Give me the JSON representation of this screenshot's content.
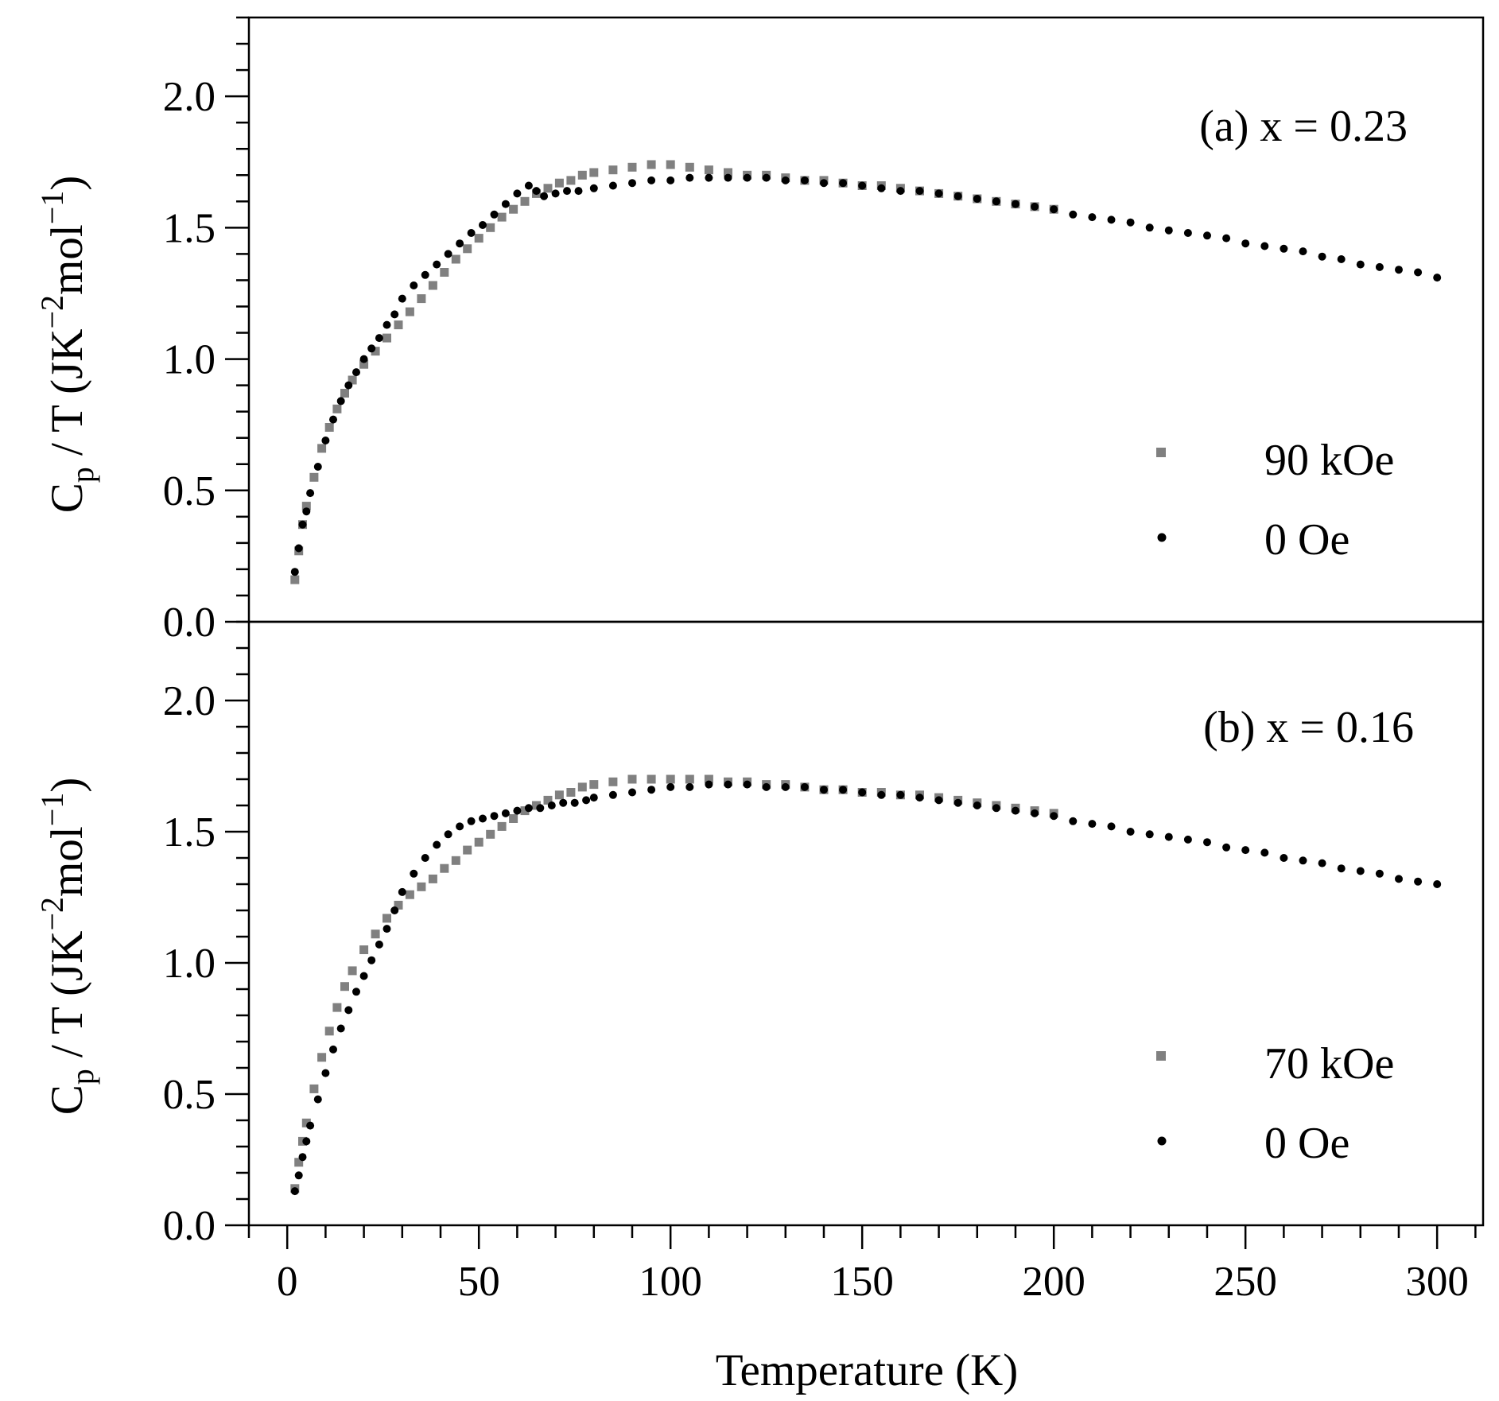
{
  "chart_data": [
    {
      "type": "scatter",
      "panel_label": "(a) x = 0.23",
      "xlabel": "Temperature (K)",
      "ylabel": {
        "main": "C",
        "sub": "p",
        "rest": " / T (JK",
        "sup1": "−2",
        "mid": "mol",
        "sup2": "−1",
        "end": ")"
      },
      "xlim": [
        -10,
        312
      ],
      "ylim": [
        0,
        2.3
      ],
      "yticks": [
        "0.0",
        "0.5",
        "1.0",
        "1.5",
        "2.0"
      ],
      "xticks": [
        "0",
        "50",
        "100",
        "150",
        "200",
        "250",
        "300"
      ],
      "legend_position": "lower-right",
      "series": [
        {
          "name": "90 kOe",
          "color": "#808080",
          "marker": "square",
          "points": [
            [
              2,
              0.16
            ],
            [
              3,
              0.27
            ],
            [
              4,
              0.37
            ],
            [
              5,
              0.44
            ],
            [
              7,
              0.55
            ],
            [
              9,
              0.66
            ],
            [
              11,
              0.74
            ],
            [
              13,
              0.81
            ],
            [
              15,
              0.87
            ],
            [
              17,
              0.92
            ],
            [
              20,
              0.98
            ],
            [
              23,
              1.03
            ],
            [
              26,
              1.08
            ],
            [
              29,
              1.13
            ],
            [
              32,
              1.18
            ],
            [
              35,
              1.23
            ],
            [
              38,
              1.28
            ],
            [
              41,
              1.33
            ],
            [
              44,
              1.38
            ],
            [
              47,
              1.42
            ],
            [
              50,
              1.46
            ],
            [
              53,
              1.5
            ],
            [
              56,
              1.54
            ],
            [
              59,
              1.57
            ],
            [
              62,
              1.6
            ],
            [
              65,
              1.63
            ],
            [
              68,
              1.65
            ],
            [
              71,
              1.67
            ],
            [
              74,
              1.68
            ],
            [
              77,
              1.7
            ],
            [
              80,
              1.71
            ],
            [
              85,
              1.72
            ],
            [
              90,
              1.73
            ],
            [
              95,
              1.74
            ],
            [
              100,
              1.74
            ],
            [
              105,
              1.73
            ],
            [
              110,
              1.72
            ],
            [
              115,
              1.71
            ],
            [
              120,
              1.7
            ],
            [
              125,
              1.7
            ],
            [
              130,
              1.69
            ],
            [
              135,
              1.68
            ],
            [
              140,
              1.68
            ],
            [
              145,
              1.67
            ],
            [
              150,
              1.66
            ],
            [
              155,
              1.66
            ],
            [
              160,
              1.65
            ],
            [
              165,
              1.64
            ],
            [
              170,
              1.63
            ],
            [
              175,
              1.62
            ],
            [
              180,
              1.61
            ],
            [
              185,
              1.6
            ],
            [
              190,
              1.59
            ],
            [
              195,
              1.58
            ],
            [
              200,
              1.57
            ]
          ]
        },
        {
          "name": "0 Oe",
          "color": "#000000",
          "marker": "circle",
          "points": [
            [
              2,
              0.19
            ],
            [
              3,
              0.28
            ],
            [
              4,
              0.37
            ],
            [
              5,
              0.42
            ],
            [
              6,
              0.49
            ],
            [
              8,
              0.59
            ],
            [
              10,
              0.69
            ],
            [
              12,
              0.77
            ],
            [
              14,
              0.84
            ],
            [
              16,
              0.9
            ],
            [
              18,
              0.95
            ],
            [
              20,
              1.0
            ],
            [
              22,
              1.04
            ],
            [
              24,
              1.08
            ],
            [
              26,
              1.13
            ],
            [
              28,
              1.17
            ],
            [
              30,
              1.23
            ],
            [
              33,
              1.28
            ],
            [
              36,
              1.32
            ],
            [
              39,
              1.36
            ],
            [
              42,
              1.4
            ],
            [
              45,
              1.44
            ],
            [
              48,
              1.48
            ],
            [
              51,
              1.51
            ],
            [
              54,
              1.55
            ],
            [
              57,
              1.59
            ],
            [
              60,
              1.63
            ],
            [
              63,
              1.66
            ],
            [
              65,
              1.64
            ],
            [
              67,
              1.62
            ],
            [
              70,
              1.63
            ],
            [
              73,
              1.64
            ],
            [
              76,
              1.64
            ],
            [
              80,
              1.65
            ],
            [
              85,
              1.66
            ],
            [
              90,
              1.67
            ],
            [
              95,
              1.68
            ],
            [
              100,
              1.68
            ],
            [
              105,
              1.69
            ],
            [
              110,
              1.69
            ],
            [
              115,
              1.69
            ],
            [
              120,
              1.69
            ],
            [
              125,
              1.69
            ],
            [
              130,
              1.68
            ],
            [
              135,
              1.68
            ],
            [
              140,
              1.67
            ],
            [
              145,
              1.67
            ],
            [
              150,
              1.66
            ],
            [
              155,
              1.65
            ],
            [
              160,
              1.64
            ],
            [
              165,
              1.64
            ],
            [
              170,
              1.63
            ],
            [
              175,
              1.62
            ],
            [
              180,
              1.61
            ],
            [
              185,
              1.6
            ],
            [
              190,
              1.59
            ],
            [
              195,
              1.58
            ],
            [
              200,
              1.57
            ],
            [
              205,
              1.55
            ],
            [
              210,
              1.54
            ],
            [
              215,
              1.53
            ],
            [
              220,
              1.52
            ],
            [
              225,
              1.5
            ],
            [
              230,
              1.49
            ],
            [
              235,
              1.48
            ],
            [
              240,
              1.47
            ],
            [
              245,
              1.46
            ],
            [
              250,
              1.44
            ],
            [
              255,
              1.43
            ],
            [
              260,
              1.42
            ],
            [
              265,
              1.41
            ],
            [
              270,
              1.39
            ],
            [
              275,
              1.38
            ],
            [
              280,
              1.36
            ],
            [
              285,
              1.35
            ],
            [
              290,
              1.34
            ],
            [
              295,
              1.33
            ],
            [
              300,
              1.31
            ]
          ]
        }
      ]
    },
    {
      "type": "scatter",
      "panel_label": "(b) x = 0.16",
      "xlabel": "Temperature (K)",
      "ylabel": {
        "main": "C",
        "sub": "p",
        "rest": " / T (JK",
        "sup1": "−2",
        "mid": "mol",
        "sup2": "−1",
        "end": ")"
      },
      "xlim": [
        -10,
        312
      ],
      "ylim": [
        0,
        2.3
      ],
      "yticks": [
        "0.0",
        "0.5",
        "1.0",
        "1.5",
        "2.0"
      ],
      "xticks": [
        "0",
        "50",
        "100",
        "150",
        "200",
        "250",
        "300"
      ],
      "legend_position": "lower-right",
      "series": [
        {
          "name": "70 kOe",
          "color": "#808080",
          "marker": "square",
          "points": [
            [
              2,
              0.14
            ],
            [
              3,
              0.24
            ],
            [
              4,
              0.32
            ],
            [
              5,
              0.39
            ],
            [
              7,
              0.52
            ],
            [
              9,
              0.64
            ],
            [
              11,
              0.74
            ],
            [
              13,
              0.83
            ],
            [
              15,
              0.91
            ],
            [
              17,
              0.97
            ],
            [
              20,
              1.05
            ],
            [
              23,
              1.11
            ],
            [
              26,
              1.17
            ],
            [
              29,
              1.22
            ],
            [
              32,
              1.26
            ],
            [
              35,
              1.29
            ],
            [
              38,
              1.32
            ],
            [
              41,
              1.36
            ],
            [
              44,
              1.39
            ],
            [
              47,
              1.43
            ],
            [
              50,
              1.46
            ],
            [
              53,
              1.49
            ],
            [
              56,
              1.52
            ],
            [
              59,
              1.55
            ],
            [
              62,
              1.58
            ],
            [
              65,
              1.6
            ],
            [
              68,
              1.62
            ],
            [
              71,
              1.64
            ],
            [
              74,
              1.65
            ],
            [
              77,
              1.67
            ],
            [
              80,
              1.68
            ],
            [
              85,
              1.69
            ],
            [
              90,
              1.7
            ],
            [
              95,
              1.7
            ],
            [
              100,
              1.7
            ],
            [
              105,
              1.7
            ],
            [
              110,
              1.7
            ],
            [
              115,
              1.69
            ],
            [
              120,
              1.69
            ],
            [
              125,
              1.68
            ],
            [
              130,
              1.68
            ],
            [
              135,
              1.67
            ],
            [
              140,
              1.66
            ],
            [
              145,
              1.66
            ],
            [
              150,
              1.65
            ],
            [
              155,
              1.65
            ],
            [
              160,
              1.64
            ],
            [
              165,
              1.64
            ],
            [
              170,
              1.63
            ],
            [
              175,
              1.62
            ],
            [
              180,
              1.61
            ],
            [
              185,
              1.6
            ],
            [
              190,
              1.59
            ],
            [
              195,
              1.58
            ],
            [
              200,
              1.57
            ]
          ]
        },
        {
          "name": "0 Oe",
          "color": "#000000",
          "marker": "circle",
          "points": [
            [
              2,
              0.13
            ],
            [
              3,
              0.19
            ],
            [
              4,
              0.26
            ],
            [
              5,
              0.32
            ],
            [
              6,
              0.38
            ],
            [
              8,
              0.48
            ],
            [
              10,
              0.58
            ],
            [
              12,
              0.67
            ],
            [
              14,
              0.75
            ],
            [
              16,
              0.82
            ],
            [
              18,
              0.89
            ],
            [
              20,
              0.95
            ],
            [
              22,
              1.01
            ],
            [
              24,
              1.07
            ],
            [
              26,
              1.13
            ],
            [
              28,
              1.2
            ],
            [
              30,
              1.27
            ],
            [
              33,
              1.34
            ],
            [
              36,
              1.4
            ],
            [
              39,
              1.45
            ],
            [
              42,
              1.49
            ],
            [
              45,
              1.52
            ],
            [
              48,
              1.54
            ],
            [
              51,
              1.55
            ],
            [
              54,
              1.56
            ],
            [
              57,
              1.57
            ],
            [
              60,
              1.58
            ],
            [
              63,
              1.59
            ],
            [
              66,
              1.59
            ],
            [
              69,
              1.6
            ],
            [
              72,
              1.61
            ],
            [
              75,
              1.61
            ],
            [
              78,
              1.62
            ],
            [
              80,
              1.63
            ],
            [
              85,
              1.64
            ],
            [
              90,
              1.65
            ],
            [
              95,
              1.66
            ],
            [
              100,
              1.67
            ],
            [
              105,
              1.67
            ],
            [
              110,
              1.68
            ],
            [
              115,
              1.68
            ],
            [
              120,
              1.68
            ],
            [
              125,
              1.67
            ],
            [
              130,
              1.67
            ],
            [
              135,
              1.67
            ],
            [
              140,
              1.66
            ],
            [
              145,
              1.66
            ],
            [
              150,
              1.65
            ],
            [
              155,
              1.64
            ],
            [
              160,
              1.64
            ],
            [
              165,
              1.63
            ],
            [
              170,
              1.62
            ],
            [
              175,
              1.61
            ],
            [
              180,
              1.6
            ],
            [
              185,
              1.59
            ],
            [
              190,
              1.58
            ],
            [
              195,
              1.57
            ],
            [
              200,
              1.56
            ],
            [
              205,
              1.54
            ],
            [
              210,
              1.53
            ],
            [
              215,
              1.52
            ],
            [
              220,
              1.5
            ],
            [
              225,
              1.49
            ],
            [
              230,
              1.48
            ],
            [
              235,
              1.47
            ],
            [
              240,
              1.46
            ],
            [
              245,
              1.44
            ],
            [
              250,
              1.43
            ],
            [
              255,
              1.42
            ],
            [
              260,
              1.4
            ],
            [
              265,
              1.39
            ],
            [
              270,
              1.38
            ],
            [
              275,
              1.36
            ],
            [
              280,
              1.35
            ],
            [
              285,
              1.34
            ],
            [
              290,
              1.32
            ],
            [
              295,
              1.31
            ],
            [
              300,
              1.3
            ]
          ]
        }
      ]
    }
  ]
}
